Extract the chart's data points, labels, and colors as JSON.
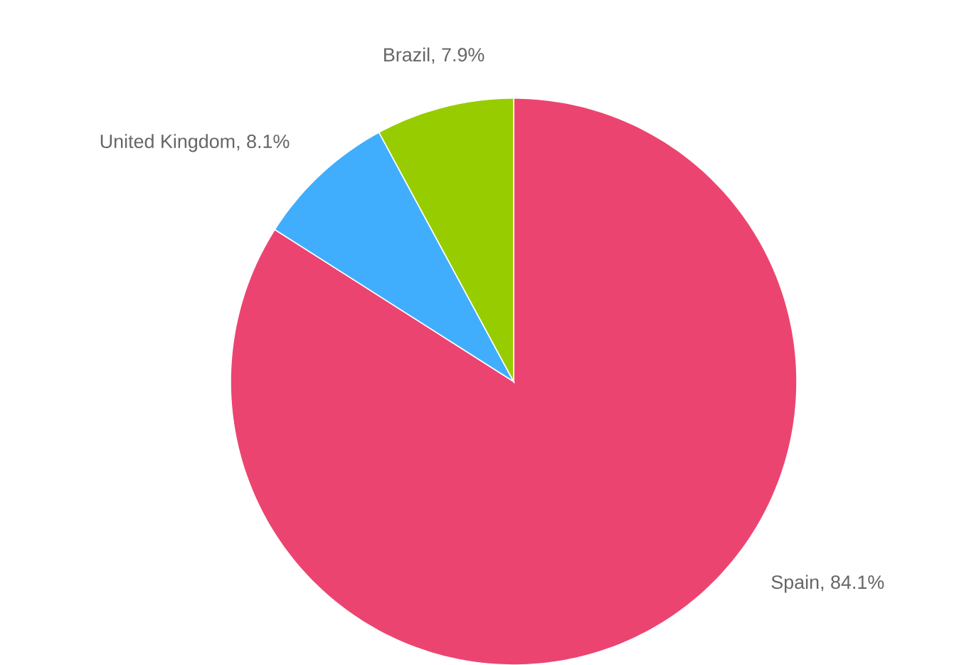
{
  "chart_data": {
    "type": "pie",
    "categories": [
      "Spain",
      "United Kingdom",
      "Brazil"
    ],
    "values": [
      84.1,
      8.1,
      7.9
    ],
    "value_labels": [
      ", 84.1%",
      ", 8.1%",
      ", 7.9%"
    ],
    "colors": [
      "#ec4470",
      "#40aefc",
      "#97cd00"
    ]
  }
}
